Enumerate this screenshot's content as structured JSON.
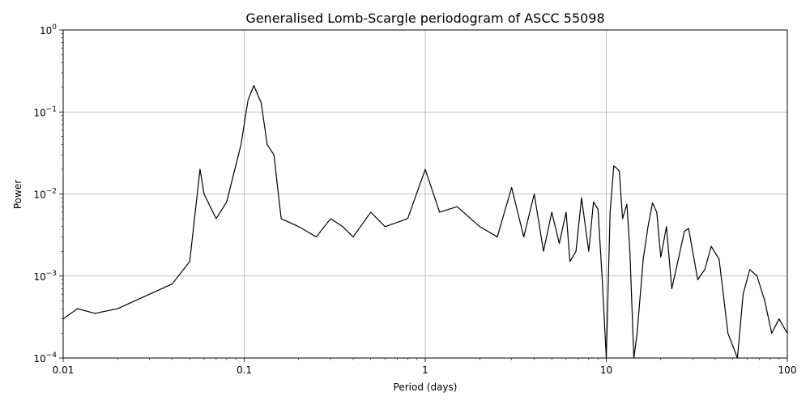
{
  "chart_data": {
    "type": "line",
    "title": "Generalised Lomb-Scargle periodogram of ASCC 55098",
    "xlabel": "Period (days)",
    "ylabel": "Power",
    "xscale": "log",
    "yscale": "log",
    "xlim": [
      0.01,
      100
    ],
    "ylim": [
      0.0001,
      1
    ],
    "grid": true,
    "x_ticks": [
      {
        "value": 0.01,
        "label": "0.01"
      },
      {
        "value": 0.1,
        "label": "0.1"
      },
      {
        "value": 1,
        "label": "1"
      },
      {
        "value": 10,
        "label": "10"
      },
      {
        "value": 100,
        "label": "100"
      }
    ],
    "y_ticks": [
      {
        "value": 0.0001,
        "base": "10",
        "exp": "−4"
      },
      {
        "value": 0.001,
        "base": "10",
        "exp": "−3"
      },
      {
        "value": 0.01,
        "base": "10",
        "exp": "−2"
      },
      {
        "value": 0.1,
        "base": "10",
        "exp": "−1"
      },
      {
        "value": 1,
        "base": "10",
        "exp": "0"
      }
    ],
    "series": [
      {
        "color": "#000000",
        "x": [
          0.01,
          0.012,
          0.015,
          0.02,
          0.025,
          0.03,
          0.04,
          0.05,
          0.057,
          0.06,
          0.07,
          0.08,
          0.096,
          0.105,
          0.113,
          0.124,
          0.134,
          0.146,
          0.16,
          0.2,
          0.25,
          0.3,
          0.35,
          0.4,
          0.5,
          0.6,
          0.8,
          1.0,
          1.2,
          1.5,
          2.0,
          2.5,
          3.0,
          3.5,
          4.0,
          4.5,
          5.0,
          5.5,
          6.0,
          6.3,
          6.8,
          7.3,
          8.0,
          8.5,
          9.0,
          9.5,
          10.0,
          10.5,
          11.0,
          11.3,
          11.8,
          12.3,
          13.0,
          13.5,
          14.2,
          14.8,
          16.0,
          17.0,
          18.0,
          19.0,
          20.0,
          21.5,
          23.0,
          25.0,
          27.0,
          28.5,
          30.0,
          32.0,
          35.0,
          38.0,
          42.0,
          47.0,
          53.0,
          57.0,
          62.0,
          68.0,
          75.0,
          82.0,
          90.0,
          100.0
        ],
        "y": [
          0.0003,
          0.0004,
          0.00035,
          0.0004,
          0.0005,
          0.0006,
          0.0008,
          0.0015,
          0.02,
          0.01,
          0.005,
          0.008,
          0.04,
          0.14,
          0.21,
          0.13,
          0.04,
          0.03,
          0.005,
          0.004,
          0.003,
          0.005,
          0.004,
          0.003,
          0.006,
          0.004,
          0.005,
          0.02,
          0.006,
          0.007,
          0.004,
          0.003,
          0.012,
          0.003,
          0.01,
          0.002,
          0.006,
          0.0025,
          0.006,
          0.0015,
          0.002,
          0.009,
          0.002,
          0.008,
          0.0065,
          0.0009,
          0.0001,
          0.006,
          0.022,
          0.021,
          0.019,
          0.005,
          0.0075,
          0.002,
          0.0001,
          0.0002,
          0.0016,
          0.004,
          0.0078,
          0.006,
          0.0017,
          0.004,
          0.0007,
          0.0016,
          0.0035,
          0.0038,
          0.002,
          0.0009,
          0.0012,
          0.0023,
          0.0016,
          0.0002,
          0.0001,
          0.0006,
          0.0012,
          0.001,
          0.0005,
          0.0002,
          0.0003,
          0.0002
        ]
      }
    ]
  }
}
